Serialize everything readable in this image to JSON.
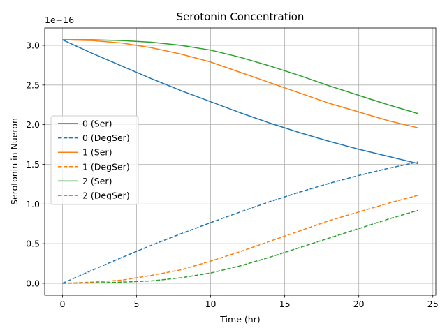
{
  "chart_data": {
    "type": "line",
    "title": "Serotonin Concentration",
    "xlabel": "Time (hr)",
    "ylabel": "Serotonin in Nueron",
    "y_offset_label": "1e−16",
    "xlim": [
      -1.2,
      25.2
    ],
    "ylim": [
      -0.15,
      3.22
    ],
    "x_ticks": [
      0,
      5,
      10,
      15,
      20,
      25
    ],
    "x_tick_labels": [
      "0",
      "5",
      "10",
      "15",
      "20",
      "25"
    ],
    "y_ticks": [
      0.0,
      0.5,
      1.0,
      1.5,
      2.0,
      2.5,
      3.0
    ],
    "y_tick_labels": [
      "0.0",
      "0.5",
      "1.0",
      "1.5",
      "2.0",
      "2.5",
      "3.0"
    ],
    "grid": true,
    "legend_position": "center-left",
    "x": [
      0,
      2,
      4,
      6,
      8,
      10,
      12,
      14,
      16,
      18,
      20,
      22,
      24
    ],
    "series": [
      {
        "name": "0 (Ser)",
        "color": "#1f77b4",
        "dash": false,
        "values": [
          3.07,
          2.9,
          2.74,
          2.58,
          2.43,
          2.29,
          2.15,
          2.02,
          1.9,
          1.79,
          1.69,
          1.6,
          1.51
        ]
      },
      {
        "name": "0 (DegSer)",
        "color": "#1f77b4",
        "dash": true,
        "values": [
          0.0,
          0.165,
          0.325,
          0.48,
          0.625,
          0.765,
          0.9,
          1.03,
          1.15,
          1.26,
          1.36,
          1.45,
          1.53
        ]
      },
      {
        "name": "1 (Ser)",
        "color": "#ff7f0e",
        "dash": false,
        "values": [
          3.07,
          3.06,
          3.03,
          2.97,
          2.89,
          2.79,
          2.66,
          2.53,
          2.4,
          2.27,
          2.16,
          2.05,
          1.96
        ]
      },
      {
        "name": "1 (DegSer)",
        "color": "#ff7f0e",
        "dash": true,
        "values": [
          0.0,
          0.015,
          0.04,
          0.1,
          0.17,
          0.28,
          0.4,
          0.53,
          0.66,
          0.79,
          0.9,
          1.01,
          1.11
        ]
      },
      {
        "name": "2 (Ser)",
        "color": "#2ca02c",
        "dash": false,
        "values": [
          3.07,
          3.07,
          3.06,
          3.04,
          3.0,
          2.94,
          2.85,
          2.74,
          2.62,
          2.49,
          2.37,
          2.25,
          2.14
        ]
      },
      {
        "name": "2 (DegSer)",
        "color": "#2ca02c",
        "dash": true,
        "values": [
          0.0,
          0.005,
          0.015,
          0.03,
          0.07,
          0.13,
          0.22,
          0.33,
          0.45,
          0.57,
          0.69,
          0.81,
          0.92
        ]
      }
    ]
  }
}
